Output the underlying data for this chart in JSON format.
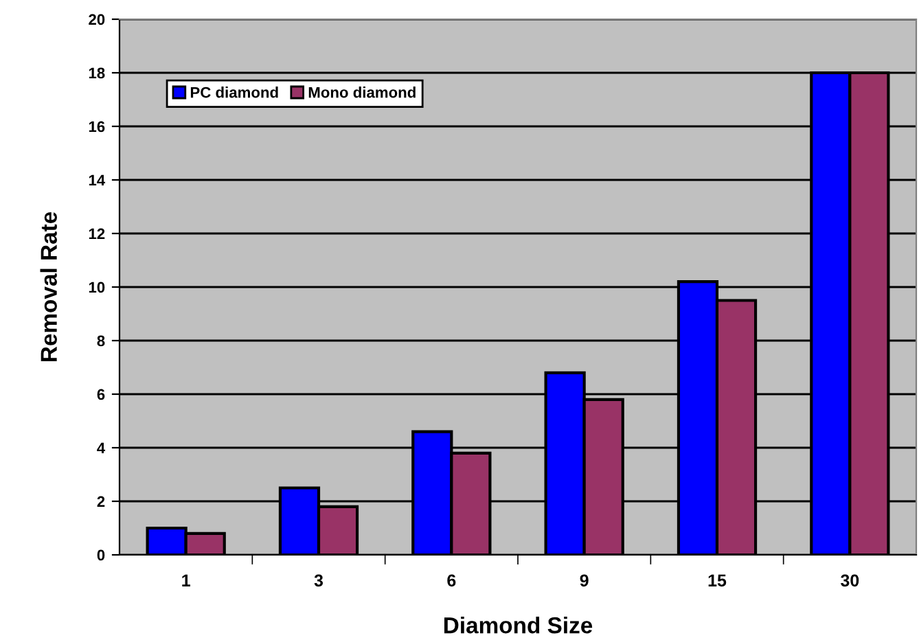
{
  "chart_data": {
    "type": "bar",
    "xlabel": "Diamond Size",
    "ylabel": "Removal Rate",
    "categories": [
      "1",
      "3",
      "6",
      "9",
      "15",
      "30"
    ],
    "series": [
      {
        "name": "PC diamond",
        "color": "#0000ff",
        "values": [
          1.0,
          2.5,
          4.6,
          6.8,
          10.2,
          18.0
        ]
      },
      {
        "name": "Mono diamond",
        "color": "#993366",
        "values": [
          0.8,
          1.8,
          3.8,
          5.8,
          9.5,
          18.0
        ]
      }
    ],
    "ylim": [
      0,
      20
    ],
    "yticks": [
      0,
      2,
      4,
      6,
      8,
      10,
      12,
      14,
      16,
      18,
      20
    ],
    "grid": "y",
    "legend": "top left"
  }
}
